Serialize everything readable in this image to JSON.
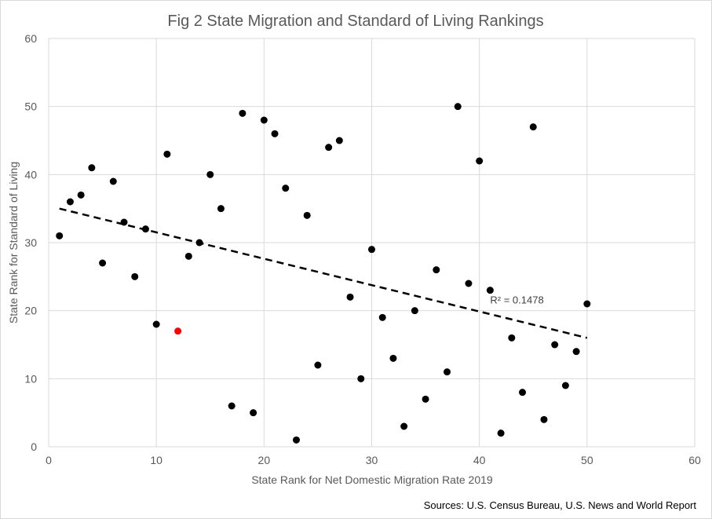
{
  "chart_data": {
    "type": "scatter",
    "title": "Fig 2 State Migration  and Standard of Living Rankings",
    "xlabel": "State Rank for Net Domestic Migration Rate 2019",
    "ylabel": "State Rank  for Standard of Living",
    "xlim": [
      0,
      60
    ],
    "ylim": [
      0,
      60
    ],
    "xticks": [
      "0",
      "10",
      "20",
      "30",
      "40",
      "50",
      "60"
    ],
    "yticks": [
      "0",
      "10",
      "20",
      "30",
      "40",
      "50",
      "60"
    ],
    "grid": true,
    "legend": "none",
    "series": [
      {
        "color": "#000000",
        "points": [
          [
            1,
            31
          ],
          [
            2,
            36
          ],
          [
            3,
            37
          ],
          [
            4,
            41
          ],
          [
            5,
            27
          ],
          [
            6,
            39
          ],
          [
            7,
            33
          ],
          [
            8,
            25
          ],
          [
            9,
            32
          ],
          [
            10,
            18
          ],
          [
            11,
            43
          ],
          [
            13,
            28
          ],
          [
            14,
            30
          ],
          [
            15,
            40
          ],
          [
            16,
            35
          ],
          [
            17,
            6
          ],
          [
            18,
            49
          ],
          [
            19,
            5
          ],
          [
            20,
            48
          ],
          [
            21,
            46
          ],
          [
            22,
            38
          ],
          [
            23,
            1
          ],
          [
            24,
            34
          ],
          [
            25,
            12
          ],
          [
            26,
            44
          ],
          [
            27,
            45
          ],
          [
            28,
            22
          ],
          [
            29,
            10
          ],
          [
            30,
            29
          ],
          [
            31,
            19
          ],
          [
            32,
            13
          ],
          [
            33,
            3
          ],
          [
            34,
            20
          ],
          [
            35,
            7
          ],
          [
            36,
            26
          ],
          [
            37,
            11
          ],
          [
            38,
            50
          ],
          [
            39,
            24
          ],
          [
            40,
            42
          ],
          [
            41,
            23
          ],
          [
            42,
            2
          ],
          [
            43,
            16
          ],
          [
            44,
            8
          ],
          [
            45,
            47
          ],
          [
            46,
            4
          ],
          [
            47,
            15
          ],
          [
            48,
            9
          ],
          [
            49,
            14
          ],
          [
            50,
            21
          ]
        ]
      },
      {
        "color": "#ff0000",
        "points": [
          [
            12,
            17
          ]
        ]
      }
    ],
    "trendline": {
      "style": "dashed",
      "color": "#000000",
      "from": [
        1,
        35
      ],
      "to": [
        50,
        16
      ],
      "label": "R² = 0.1478",
      "label_at": [
        41,
        21.5
      ]
    },
    "source": "Sources: U.S. Census Bureau, U.S. News and World Report"
  }
}
